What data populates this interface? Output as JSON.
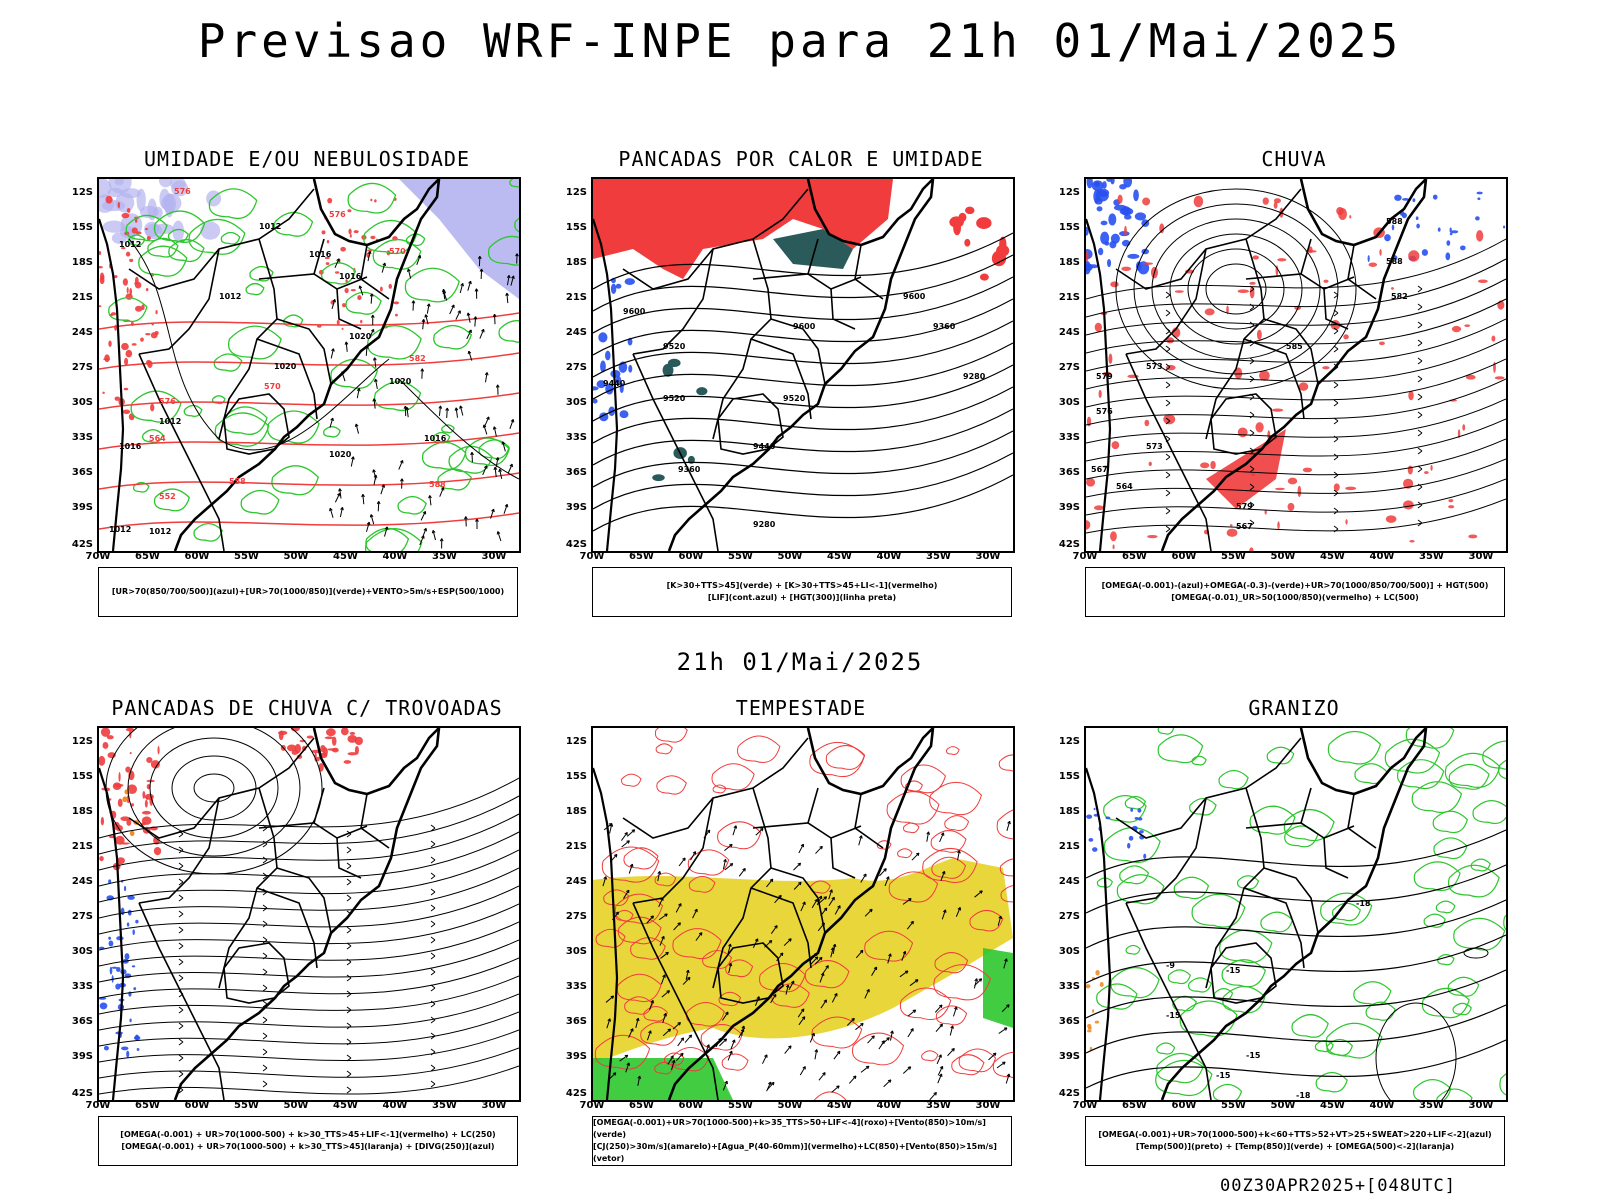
{
  "header": {
    "title": "Previsao WRF-INPE  para 21h 01/Mai/2025"
  },
  "mid_title": "21h 01/Mai/2025",
  "footer": "00Z30APR2025+[048UTC]",
  "lat_labels": [
    "12S",
    "15S",
    "18S",
    "21S",
    "24S",
    "27S",
    "30S",
    "33S",
    "36S",
    "39S",
    "42S"
  ],
  "lon_labels": [
    "70W",
    "65W",
    "60W",
    "55W",
    "50W",
    "45W",
    "40W",
    "35W",
    "30W"
  ],
  "colors": {
    "red": "#f03c3c",
    "green": "#2ec62e",
    "blue": "#2850f0",
    "lavender": "#b4b4f0",
    "yellow": "#e6d22a",
    "darkteal": "#2a5a5a",
    "orange": "#f08c28"
  },
  "panels": [
    {
      "title": "UMIDADE E/OU NEBULOSIDADE",
      "legend": [
        "[UR>70(850/700/500)](azul)+[UR>70(1000/850)](verde)+VENTO>5m/s+ESP(500/1000)"
      ],
      "labels": [
        "1012",
        "1012",
        "1012",
        "1016",
        "1016",
        "1020",
        "1020",
        "1020",
        "1012",
        "1016",
        "1016",
        "1020",
        "1012",
        "1012",
        "576",
        "576",
        "570",
        "582",
        "570",
        "576",
        "558",
        "564",
        "552",
        "588"
      ]
    },
    {
      "title": "PANCADAS POR CALOR E UMIDADE",
      "legend": [
        "[K>30+TTS>45](verde) + [K>30+TTS>45+LI<-1](vermelho)",
        "[LIF](cont.azul) + [HGT(300)](linha preta)"
      ],
      "labels": [
        "9600",
        "9600",
        "9520",
        "9600",
        "9520",
        "9440",
        "9360",
        "9440",
        "9520",
        "9280",
        "9360",
        "9280"
      ]
    },
    {
      "title": "CHUVA",
      "legend": [
        "[OMEGA(-0.001)-(azul)+OMEGA(-0.3)-(verde)+UR>70(1000/850/700/500)] + HGT(500)",
        "[OMEGA(-0.01)_UR>50(1000/850)(vermelho) + LC(500)"
      ],
      "labels": [
        "588",
        "588",
        "582",
        "585",
        "573",
        "579",
        "576",
        "573",
        "567",
        "564",
        "579",
        "567"
      ]
    },
    {
      "title": "PANCADAS DE CHUVA C/ TROVOADAS",
      "legend": [
        "[OMEGA(-0.001) + UR>70(1000-500) + k>30_TTS>45+LIF<-1](vermelho) + LC(250)",
        "[OMEGA(-0.001) + UR>70(1000-500) + k>30_TTS>45](laranja) + [DIVG(250)](azul)"
      ],
      "labels": []
    },
    {
      "title": "TEMPESTADE",
      "legend": [
        "[OMEGA(-0.001)+UR>70(1000-500)+k>35_TTS>50+LIF<-4](roxo)+[Vento(850)>10m/s](verde)",
        "[CJ(250)>30m/s](amarelo)+[Agua_P(40-60mm)](vermelho)+LC(850)+[Vento(850)>15m/s](vetor)"
      ],
      "labels": []
    },
    {
      "title": "GRANIZO",
      "legend": [
        "[OMEGA(-0.001)+UR>70(1000-500)+k<60+TTS>52+VT>25+SWEAT>220+LIF<-2](azul)",
        "[Temp(500)](preto) + [Temp(850)](verde) + [OMEGA(500)<-2](laranja)"
      ],
      "labels": [
        "-9",
        "-15",
        "-15",
        "-15",
        "-18",
        "-15",
        "-18"
      ]
    }
  ]
}
